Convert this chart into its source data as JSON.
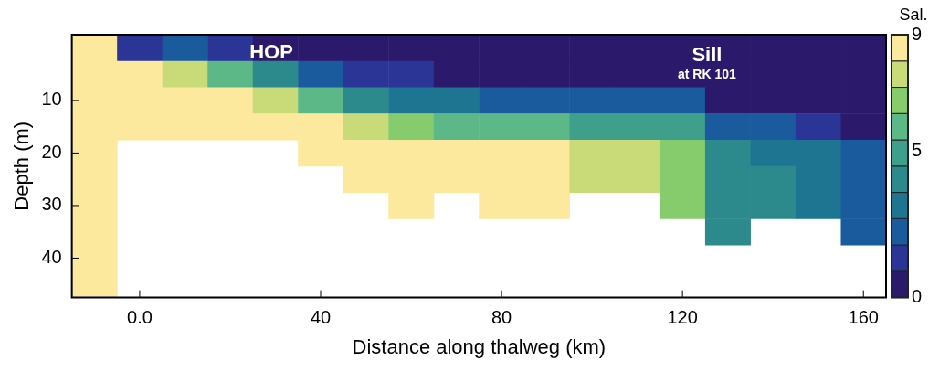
{
  "chart_data": {
    "type": "heatmap",
    "xlabel": "Distance along thalweg (km)",
    "ylabel": "Depth (m)",
    "clabel": "Sal.",
    "categories": [
      null,
      "0.0",
      null,
      null,
      null,
      "40",
      null,
      null,
      null,
      "80",
      null,
      null,
      null,
      "120",
      null,
      null,
      null,
      "160"
    ],
    "y_categories": [
      null,
      null,
      "10",
      null,
      "20",
      null,
      "30",
      null,
      "40",
      null
    ],
    "clim": [
      0,
      9
    ],
    "cticks": [
      0,
      5,
      9
    ],
    "colors": [
      "#2b1a6c",
      "#2a3596",
      "#195b9c",
      "#1d7592",
      "#2c8a8d",
      "#3e9f8b",
      "#5cb886",
      "#86cc6c",
      "#c8db78",
      "#fce99d"
    ],
    "cells": [
      [
        9,
        1,
        2,
        1,
        0,
        0,
        0,
        0,
        0,
        0,
        0,
        0,
        0,
        0,
        0,
        0,
        0,
        0
      ],
      [
        9,
        9,
        8,
        6,
        4,
        2,
        1,
        1,
        0,
        0,
        0,
        0,
        0,
        0,
        0,
        0,
        0,
        0
      ],
      [
        9,
        9,
        9,
        9,
        8,
        6,
        4,
        3,
        3,
        2,
        2,
        2,
        2,
        2,
        0,
        0,
        0,
        0
      ],
      [
        9,
        9,
        9,
        9,
        9,
        9,
        8,
        7,
        6,
        6,
        6,
        5,
        5,
        5,
        2,
        2,
        1,
        0
      ],
      [
        9,
        null,
        null,
        null,
        null,
        9,
        9,
        9,
        9,
        9,
        9,
        8,
        8,
        7,
        4,
        3,
        3,
        2
      ],
      [
        9,
        null,
        null,
        null,
        null,
        null,
        9,
        9,
        9,
        9,
        9,
        8,
        8,
        7,
        4,
        4,
        3,
        2
      ],
      [
        9,
        null,
        null,
        null,
        null,
        null,
        null,
        9,
        null,
        9,
        9,
        null,
        null,
        7,
        4,
        4,
        3,
        2
      ],
      [
        9,
        null,
        null,
        null,
        null,
        null,
        null,
        null,
        null,
        null,
        null,
        null,
        null,
        null,
        4,
        null,
        null,
        2
      ],
      [
        9,
        null,
        null,
        null,
        null,
        null,
        null,
        null,
        null,
        null,
        null,
        null,
        null,
        null,
        null,
        null,
        null,
        null
      ],
      [
        9,
        null,
        null,
        null,
        null,
        null,
        null,
        null,
        null,
        null,
        null,
        null,
        null,
        null,
        null,
        null,
        null,
        null
      ]
    ],
    "annotations": [
      "HOP",
      "Sill",
      "at RK 101"
    ]
  }
}
